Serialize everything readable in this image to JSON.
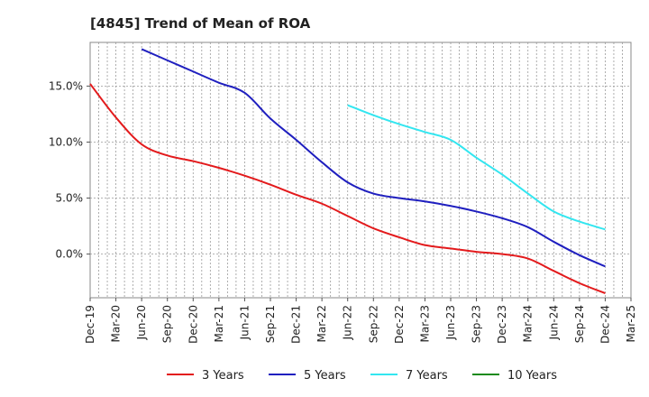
{
  "chart_data": {
    "type": "line",
    "title": "[4845]  Trend of Mean of ROA",
    "xlabel": "",
    "ylabel": "",
    "ylim": [
      -3.9,
      18.9
    ],
    "yticks": [
      0,
      5,
      10,
      15
    ],
    "ytick_labels": [
      "0.0%",
      "5.0%",
      "10.0%",
      "15.0%"
    ],
    "x_tick_labels": [
      "Dec-19",
      "Mar-20",
      "Jun-20",
      "Sep-20",
      "Dec-20",
      "Mar-21",
      "Jun-21",
      "Sep-21",
      "Dec-21",
      "Mar-22",
      "Jun-22",
      "Sep-22",
      "Dec-22",
      "Mar-23",
      "Jun-23",
      "Sep-23",
      "Dec-23",
      "Mar-24",
      "Jun-24",
      "Sep-24",
      "Dec-24",
      "Mar-25"
    ],
    "grid": true,
    "legend_position": "bottom",
    "series": [
      {
        "name": "3 Years",
        "color": "#e31a1c",
        "start_index": 0,
        "values": [
          15.2,
          12.2,
          9.8,
          8.8,
          8.3,
          7.7,
          7.0,
          6.2,
          5.3,
          4.5,
          3.4,
          2.3,
          1.5,
          0.8,
          0.5,
          0.2,
          0.0,
          -0.4,
          -1.5,
          -2.6,
          -3.5
        ]
      },
      {
        "name": "5 Years",
        "color": "#1f1fbf",
        "start_index": 2,
        "values": [
          18.3,
          17.3,
          16.3,
          15.3,
          14.4,
          12.1,
          10.2,
          8.2,
          6.4,
          5.4,
          5.0,
          4.7,
          4.3,
          3.8,
          3.2,
          2.4,
          1.1,
          -0.1,
          -1.1
        ]
      },
      {
        "name": "7 Years",
        "color": "#33e6f0",
        "start_index": 10,
        "values": [
          13.3,
          12.4,
          11.6,
          10.9,
          10.2,
          8.6,
          7.1,
          5.4,
          3.8,
          2.9,
          2.2
        ]
      },
      {
        "name": "10 Years",
        "color": "#1a8a1a",
        "start_index": 0,
        "values": []
      }
    ]
  }
}
